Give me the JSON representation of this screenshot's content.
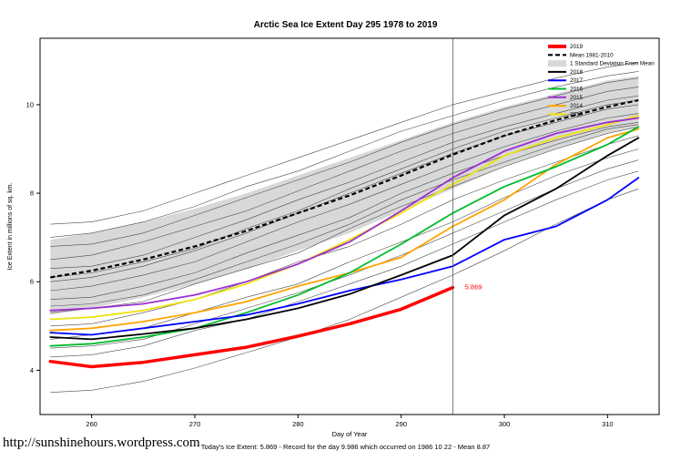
{
  "title": "Arctic Sea Ice Extent Day 295 1978 to 2019",
  "footer": {
    "summary": "Today's Ice Extent: 5.869  - Record for the day  9.986 which occurred on 1986 10 22  - Mean  8.87",
    "url": "http://sunshinehours.wordpress.com"
  },
  "chart_data": {
    "type": "line",
    "title": "Arctic Sea Ice Extent Day 295 1978 to 2019",
    "xlabel": "Day of Year",
    "ylabel": "Ice Extent in millions of sq. km.",
    "xlim": [
      255,
      315
    ],
    "ylim": [
      3.0,
      11.5
    ],
    "xticks": [
      260,
      270,
      280,
      290,
      300,
      310
    ],
    "yticks": [
      4,
      6,
      8,
      10
    ],
    "x": [
      256,
      260,
      265,
      270,
      275,
      280,
      285,
      290,
      295,
      300,
      305,
      310,
      313
    ],
    "band": {
      "name": "1 Standard Deviation From Mean",
      "color": "#D8D8D8",
      "upper": [
        6.95,
        7.1,
        7.35,
        7.65,
        8.0,
        8.4,
        8.8,
        9.2,
        9.6,
        9.95,
        10.25,
        10.55,
        10.65
      ],
      "lower": [
        5.25,
        5.4,
        5.65,
        5.95,
        6.3,
        6.7,
        7.1,
        7.6,
        8.1,
        8.6,
        9.0,
        9.35,
        9.5
      ]
    },
    "mean": {
      "name": "Mean 1981-2010",
      "color": "#000000",
      "values": [
        6.1,
        6.25,
        6.5,
        6.8,
        7.15,
        7.55,
        7.95,
        8.4,
        8.87,
        9.3,
        9.65,
        9.95,
        10.1
      ]
    },
    "series": [
      {
        "name": "2013",
        "color": "#EFE20E",
        "width": 1.8,
        "values": [
          5.15,
          5.2,
          5.35,
          5.6,
          5.95,
          6.4,
          6.95,
          7.55,
          8.2,
          8.85,
          9.25,
          9.55,
          9.75
        ]
      },
      {
        "name": "2014",
        "color": "#FFA500",
        "width": 1.8,
        "values": [
          4.9,
          4.95,
          5.1,
          5.3,
          5.55,
          5.9,
          6.2,
          6.55,
          7.25,
          7.85,
          8.65,
          9.25,
          9.45
        ]
      },
      {
        "name": "2015",
        "color": "#9B30D0",
        "width": 1.8,
        "values": [
          5.35,
          5.4,
          5.5,
          5.7,
          6.0,
          6.4,
          6.9,
          7.6,
          8.35,
          8.95,
          9.35,
          9.6,
          9.7
        ]
      },
      {
        "name": "2016",
        "color": "#00BB2D",
        "width": 1.8,
        "values": [
          4.55,
          4.6,
          4.75,
          4.95,
          5.3,
          5.7,
          6.2,
          6.85,
          7.55,
          8.15,
          8.6,
          9.1,
          9.5
        ]
      },
      {
        "name": "2017",
        "color": "#0000FF",
        "width": 1.8,
        "values": [
          4.85,
          4.8,
          4.95,
          5.1,
          5.25,
          5.5,
          5.8,
          6.05,
          6.35,
          6.95,
          7.25,
          7.85,
          8.35
        ]
      },
      {
        "name": "2018",
        "color": "#000000",
        "width": 1.8,
        "values": [
          4.75,
          4.7,
          4.82,
          4.95,
          5.15,
          5.4,
          5.72,
          6.15,
          6.6,
          7.5,
          8.1,
          8.85,
          9.25
        ]
      },
      {
        "name": "2019",
        "color": "#FF0000",
        "width": 3.5,
        "values": [
          4.2,
          4.08,
          4.18,
          4.35,
          4.52,
          4.77,
          5.05,
          5.38,
          5.869
        ]
      }
    ],
    "background_color": "#4a4a4a",
    "background_series": [
      [
        3.5,
        3.55,
        3.75,
        4.05,
        4.4,
        4.75,
        5.15,
        5.65,
        6.15,
        6.7,
        7.3,
        7.85,
        8.1
      ],
      [
        4.3,
        4.35,
        4.55,
        4.9,
        5.15,
        5.55,
        5.95,
        6.35,
        6.85,
        7.35,
        7.85,
        8.3,
        8.5
      ],
      [
        4.5,
        4.55,
        4.7,
        5.05,
        5.4,
        5.75,
        6.15,
        6.6,
        7.1,
        7.6,
        8.1,
        8.55,
        8.75
      ],
      [
        4.7,
        4.8,
        4.95,
        5.3,
        5.65,
        5.95,
        6.45,
        6.9,
        7.35,
        7.9,
        8.4,
        8.8,
        9.0
      ],
      [
        5.0,
        5.05,
        5.3,
        5.6,
        6.0,
        6.45,
        6.8,
        7.3,
        7.85,
        8.3,
        8.7,
        9.1,
        9.3
      ],
      [
        5.3,
        5.4,
        5.55,
        5.95,
        6.3,
        6.65,
        7.2,
        7.7,
        8.15,
        8.6,
        9.0,
        9.35,
        9.5
      ],
      [
        5.45,
        5.5,
        5.7,
        6.05,
        6.45,
        6.85,
        7.3,
        7.85,
        8.3,
        8.7,
        9.1,
        9.45,
        9.55
      ],
      [
        5.6,
        5.65,
        5.9,
        6.2,
        6.65,
        7.05,
        7.45,
        8.0,
        8.45,
        8.85,
        9.2,
        9.5,
        9.6
      ],
      [
        5.8,
        5.9,
        6.15,
        6.45,
        6.9,
        7.35,
        7.75,
        8.2,
        8.65,
        9.05,
        9.4,
        9.7,
        9.8
      ],
      [
        6.0,
        6.1,
        6.35,
        6.7,
        7.1,
        7.55,
        8.0,
        8.45,
        8.9,
        9.3,
        9.6,
        9.9,
        10.0
      ],
      [
        6.1,
        6.2,
        6.45,
        6.75,
        7.2,
        7.6,
        8.1,
        8.55,
        9.0,
        9.4,
        9.7,
        10.0,
        10.1
      ],
      [
        6.3,
        6.35,
        6.6,
        7.0,
        7.4,
        7.85,
        8.25,
        8.7,
        9.15,
        9.5,
        9.8,
        10.1,
        10.2
      ],
      [
        6.5,
        6.6,
        6.9,
        7.25,
        7.6,
        8.05,
        8.5,
        8.95,
        9.35,
        9.7,
        10.0,
        10.3,
        10.4
      ],
      [
        6.8,
        6.85,
        7.1,
        7.5,
        7.9,
        8.3,
        8.7,
        9.15,
        9.55,
        9.9,
        10.2,
        10.5,
        10.6
      ],
      [
        7.0,
        7.1,
        7.35,
        7.7,
        8.15,
        8.5,
        8.95,
        9.4,
        9.75,
        10.1,
        10.4,
        10.65,
        10.75
      ],
      [
        7.3,
        7.35,
        7.6,
        8.0,
        8.4,
        8.8,
        9.2,
        9.6,
        10.0,
        10.3,
        10.6,
        10.85,
        10.95
      ]
    ],
    "vline_x": 295,
    "annotation": {
      "text": "5.869",
      "x": 296,
      "y": 5.869,
      "color": "#FF0000"
    },
    "legend": [
      {
        "label": "2019",
        "color": "#FF0000",
        "width": 4
      },
      {
        "label": "Mean 1981-2010",
        "color": "#000000",
        "width": 2.2,
        "dash": "5,3"
      },
      {
        "label": "1 Standard Deviation From Mean",
        "color": "#D8D8D8",
        "type": "fill"
      },
      {
        "label": "2018",
        "color": "#000000",
        "width": 2
      },
      {
        "label": "2017",
        "color": "#0000FF",
        "width": 2
      },
      {
        "label": "2016",
        "color": "#00BB2D",
        "width": 2
      },
      {
        "label": "2015",
        "color": "#9B30D0",
        "width": 2
      },
      {
        "label": "2014",
        "color": "#FFA500",
        "width": 2
      },
      {
        "label": "2013",
        "color": "#EFE20E",
        "width": 2
      }
    ],
    "legend_position": "top-right",
    "grid": false
  }
}
